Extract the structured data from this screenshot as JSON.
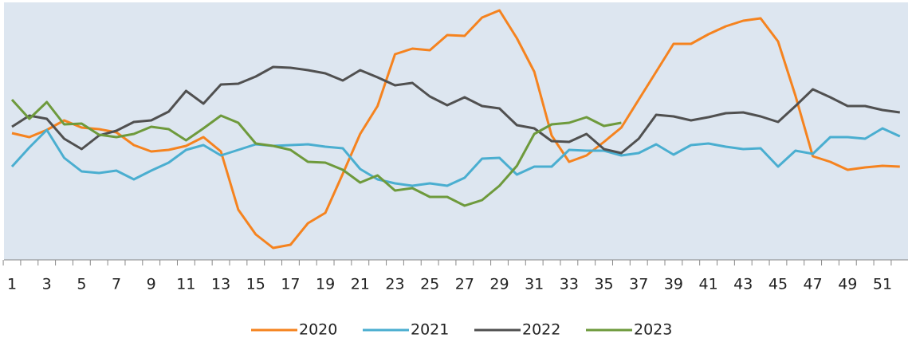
{
  "chart_data": {
    "type": "line",
    "categories": [
      1,
      null,
      3,
      null,
      5,
      null,
      7,
      null,
      9,
      null,
      11,
      null,
      13,
      null,
      15,
      null,
      17,
      null,
      19,
      null,
      21,
      null,
      23,
      null,
      25,
      null,
      27,
      null,
      29,
      null,
      31,
      null,
      33,
      null,
      35,
      null,
      37,
      null,
      39,
      null,
      41,
      null,
      43,
      null,
      45,
      null,
      47,
      null,
      49,
      null,
      51,
      null
    ],
    "ylim": [
      0,
      322
    ],
    "legend": "bottom",
    "series": [
      {
        "name": "2020",
        "color": "#f5831f",
        "values": [
          158,
          153,
          162,
          174,
          165,
          163,
          159,
          143,
          135,
          137,
          142,
          153,
          135,
          62,
          31,
          14,
          18,
          45,
          58,
          107,
          157,
          192,
          257,
          264,
          262,
          281,
          280,
          303,
          312,
          277,
          235,
          155,
          122,
          130,
          147,
          165,
          200,
          235,
          270,
          270,
          282,
          292,
          299,
          302,
          273,
          205,
          129,
          122,
          112,
          115,
          117,
          116
        ]
      },
      {
        "name": "2021",
        "color": "#4aaed0",
        "values": [
          116,
          140,
          162,
          127,
          110,
          108,
          111,
          100,
          111,
          121,
          137,
          143,
          130,
          137,
          144,
          142,
          143,
          144,
          141,
          139,
          113,
          100,
          95,
          92,
          95,
          92,
          102,
          126,
          127,
          106,
          116,
          116,
          137,
          136,
          136,
          130,
          133,
          144,
          131,
          143,
          145,
          141,
          138,
          139,
          116,
          136,
          132,
          153,
          153,
          151,
          164,
          154
        ]
      },
      {
        "name": "2022",
        "color": "#505050",
        "values": [
          166,
          180,
          176,
          151,
          138,
          155,
          161,
          172,
          174,
          185,
          211,
          195,
          219,
          220,
          229,
          241,
          240,
          237,
          233,
          224,
          237,
          228,
          218,
          221,
          204,
          193,
          203,
          192,
          189,
          168,
          164,
          148,
          147,
          157,
          138,
          133,
          151,
          181,
          179,
          174,
          178,
          183,
          184,
          179,
          172,
          192,
          213,
          203,
          192,
          192,
          187,
          184
        ]
      },
      {
        "name": "2023",
        "color": "#6e9a3c",
        "values": [
          200,
          176,
          197,
          169,
          170,
          156,
          153,
          157,
          166,
          163,
          149,
          164,
          180,
          171,
          145,
          142,
          137,
          122,
          121,
          112,
          96,
          105,
          86,
          89,
          78,
          78,
          67,
          74,
          92,
          117,
          157,
          169,
          171,
          178,
          167,
          171,
          null,
          null,
          null,
          null,
          null,
          null,
          null,
          null,
          null,
          null,
          null,
          null,
          null,
          null,
          null,
          null
        ]
      }
    ]
  }
}
